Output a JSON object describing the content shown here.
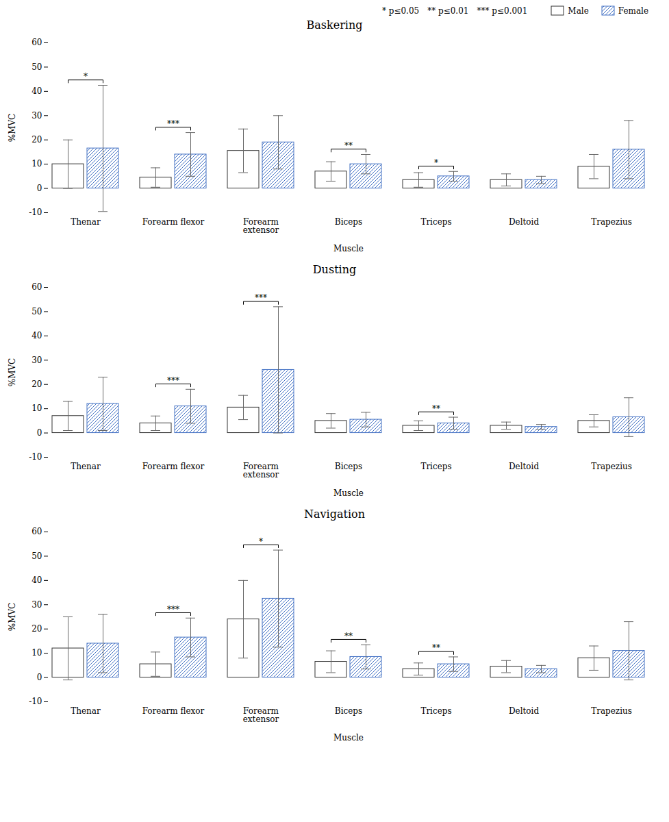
{
  "chart_data": [
    {
      "type": "bar",
      "title": "Baskering",
      "xlabel": "Muscle",
      "ylabel": "%MVC",
      "categories": [
        "Thenar",
        "Forearm flexor",
        "Forearm\nextensor",
        "Biceps",
        "Triceps",
        "Deltoid",
        "Trapezius"
      ],
      "series": [
        {
          "name": "Male",
          "color": "#333333",
          "values": [
            10,
            4.5,
            15.5,
            7,
            3.5,
            3.5,
            9
          ],
          "errors": [
            10,
            4,
            9,
            4,
            3,
            2.5,
            5
          ]
        },
        {
          "name": "Female",
          "color": "#4472c4",
          "values": [
            16.5,
            14,
            19,
            10,
            5,
            3.5,
            16
          ],
          "errors": [
            26,
            9,
            11,
            4,
            2,
            1.5,
            12
          ]
        }
      ],
      "significance": [
        {
          "category": "Thenar",
          "label": "*"
        },
        {
          "category": "Forearm flexor",
          "label": "***"
        },
        {
          "category": "Biceps",
          "label": "**"
        },
        {
          "category": "Triceps",
          "label": "*"
        }
      ],
      "sig_legend": [
        {
          "symbol": "*",
          "text": "p≤0.05"
        },
        {
          "symbol": "**",
          "text": "p≤0.01"
        },
        {
          "symbol": "***",
          "text": "p≤0.001"
        }
      ],
      "legend": "upper right",
      "ylim": [
        -10,
        60
      ],
      "yticks": [
        -10,
        0,
        10,
        20,
        30,
        40,
        50,
        60
      ],
      "grid": false
    },
    {
      "type": "bar",
      "title": "Dusting",
      "xlabel": "Muscle",
      "ylabel": "%MVC",
      "categories": [
        "Thenar",
        "Forearm flexor",
        "Forearm\nextensor",
        "Biceps",
        "Triceps",
        "Deltoid",
        "Trapezius"
      ],
      "series": [
        {
          "name": "Male",
          "color": "#333333",
          "values": [
            7,
            4,
            10.5,
            5,
            3,
            3,
            5
          ],
          "errors": [
            6,
            3,
            5,
            3,
            2,
            1.5,
            2.5
          ]
        },
        {
          "name": "Female",
          "color": "#4472c4",
          "values": [
            12,
            11,
            26,
            5.5,
            4,
            2.5,
            6.5
          ],
          "errors": [
            11,
            7,
            26,
            3,
            2.5,
            1,
            8
          ]
        }
      ],
      "significance": [
        {
          "category": "Forearm flexor",
          "label": "***"
        },
        {
          "category": "Forearm\nextensor",
          "label": "***"
        },
        {
          "category": "Triceps",
          "label": "**"
        }
      ],
      "ylim": [
        -10,
        60
      ],
      "yticks": [
        -10,
        0,
        10,
        20,
        30,
        40,
        50,
        60
      ],
      "grid": false
    },
    {
      "type": "bar",
      "title": "Navigation",
      "xlabel": "Muscle",
      "ylabel": "%MVC",
      "categories": [
        "Thenar",
        "Forearm flexor",
        "Forearm\nextensor",
        "Biceps",
        "Triceps",
        "Deltoid",
        "Trapezius"
      ],
      "series": [
        {
          "name": "Male",
          "color": "#333333",
          "values": [
            12,
            5.5,
            24,
            6.5,
            3.5,
            4.5,
            8
          ],
          "errors": [
            13,
            5,
            16,
            4.5,
            2.5,
            2.5,
            5
          ]
        },
        {
          "name": "Female",
          "color": "#4472c4",
          "values": [
            14,
            16.5,
            32.5,
            8.5,
            5.5,
            3.5,
            11
          ],
          "errors": [
            12,
            8,
            20,
            5,
            3,
            1.5,
            12
          ]
        }
      ],
      "significance": [
        {
          "category": "Forearm flexor",
          "label": "***"
        },
        {
          "category": "Forearm\nextensor",
          "label": "*"
        },
        {
          "category": "Biceps",
          "label": "**"
        },
        {
          "category": "Triceps",
          "label": "**"
        }
      ],
      "ylim": [
        -10,
        60
      ],
      "yticks": [
        -10,
        0,
        10,
        20,
        30,
        40,
        50,
        60
      ],
      "grid": false
    }
  ]
}
